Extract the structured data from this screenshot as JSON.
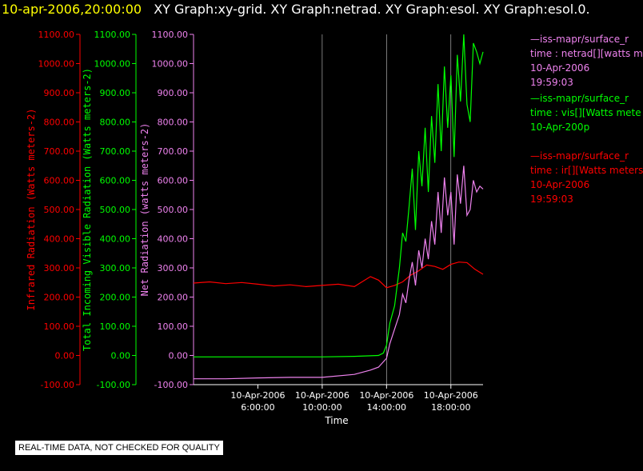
{
  "header": {
    "date": "10-apr-2006,20:00:00",
    "graphs": "XY Graph:xy-grid.  XY Graph:netrad.  XY Graph:esol.  XY Graph:esol.0."
  },
  "colors": {
    "ir": "#ff0000",
    "vis": "#00ff00",
    "net": "#ee82ee",
    "grid": "#ffffff",
    "title_date": "#ffff00"
  },
  "legend": [
    {
      "color": "#ee82ee",
      "lines": [
        "—iss-mapr/surface_r",
        "time : netrad[][watts m",
        "10-Apr-2006",
        "19:59:03"
      ]
    },
    {
      "color": "#00ff00",
      "lines": [
        "—iss-mapr/surface_r",
        "time : vis[][Watts mete",
        "10-Apr-200p"
      ]
    },
    {
      "color": "#ff0000",
      "lines": [
        "—iss-mapr/surface_r",
        "time : ir[][Watts meters",
        "10-Apr-2006",
        "19:59:03"
      ]
    }
  ],
  "qc_note": "REAL-TIME DATA, NOT CHECKED FOR QUALITY",
  "chart_data": {
    "type": "line",
    "xlabel": "Time",
    "xticks": [
      {
        "t": 6,
        "date": "10-Apr-2006",
        "time": "6:00:00"
      },
      {
        "t": 10,
        "date": "10-Apr-2006",
        "time": "10:00:00"
      },
      {
        "t": 14,
        "date": "10-Apr-2006",
        "time": "14:00:00"
      },
      {
        "t": 18,
        "date": "10-Apr-2006",
        "time": "18:00:00"
      }
    ],
    "xlim_hours": [
      2,
      20
    ],
    "gridlines_hours": [
      10,
      14,
      18
    ],
    "ylim": [
      -100,
      1100
    ],
    "ytick_values": [
      -100,
      0,
      100,
      200,
      300,
      400,
      500,
      600,
      700,
      800,
      900,
      1000,
      1100
    ],
    "ytick_labels": [
      "-100.00",
      "0.00",
      "100.00",
      "200.00",
      "300.00",
      "400.00",
      "500.00",
      "600.00",
      "700.00",
      "800.00",
      "900.00",
      "1000.00",
      "1100.00"
    ],
    "axes": [
      {
        "key": "ir",
        "label": "Infrared Radiation (Watts meters-2)"
      },
      {
        "key": "vis",
        "label": "Total Incoming Visible Radiation (Watts meters-2)"
      },
      {
        "key": "net",
        "label": "Net Radiation (watts meters-2)"
      }
    ],
    "series": [
      {
        "key": "ir",
        "x": [
          2,
          3,
          4,
          5,
          6,
          7,
          8,
          9,
          10,
          11,
          12,
          13,
          13.5,
          14,
          14.5,
          15,
          15.5,
          16,
          16.5,
          17,
          17.5,
          18,
          18.5,
          19,
          19.5,
          20
        ],
        "y": [
          248,
          252,
          246,
          250,
          244,
          238,
          242,
          236,
          240,
          244,
          236,
          270,
          258,
          232,
          240,
          252,
          275,
          290,
          310,
          305,
          295,
          312,
          320,
          318,
          295,
          278
        ]
      },
      {
        "key": "vis",
        "x": [
          2,
          4,
          6,
          8,
          10,
          12,
          13.5,
          13.8,
          14,
          14.2,
          14.5,
          14.8,
          15,
          15.2,
          15.4,
          15.6,
          15.8,
          16,
          16.2,
          16.4,
          16.6,
          16.8,
          17,
          17.2,
          17.4,
          17.6,
          17.8,
          18,
          18.2,
          18.4,
          18.6,
          18.8,
          19,
          19.2,
          19.4,
          19.6,
          19.8,
          20
        ],
        "y": [
          -5,
          -5,
          -5,
          -5,
          -5,
          -3,
          0,
          8,
          35,
          110,
          170,
          300,
          420,
          390,
          510,
          640,
          430,
          700,
          580,
          780,
          560,
          820,
          660,
          930,
          700,
          990,
          780,
          960,
          680,
          1030,
          870,
          1100,
          860,
          800,
          1070,
          1040,
          1000,
          1040
        ]
      },
      {
        "key": "net",
        "x": [
          2,
          4,
          6,
          8,
          10,
          12,
          13,
          13.5,
          14,
          14.2,
          14.5,
          14.8,
          15,
          15.2,
          15.4,
          15.6,
          15.8,
          16,
          16.2,
          16.4,
          16.6,
          16.8,
          17,
          17.2,
          17.4,
          17.6,
          17.8,
          18,
          18.2,
          18.4,
          18.6,
          18.8,
          19,
          19.2,
          19.4,
          19.6,
          19.8,
          20
        ],
        "y": [
          -80,
          -80,
          -77,
          -75,
          -75,
          -65,
          -50,
          -40,
          -10,
          40,
          90,
          140,
          210,
          180,
          260,
          320,
          240,
          360,
          300,
          400,
          330,
          460,
          380,
          560,
          420,
          610,
          480,
          560,
          380,
          620,
          520,
          650,
          480,
          500,
          600,
          560,
          580,
          570
        ]
      }
    ]
  }
}
